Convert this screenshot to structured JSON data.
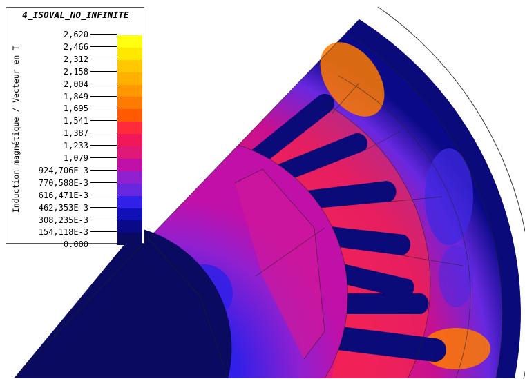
{
  "legend": {
    "title": "4_ISOVAL_NO_INFINITE",
    "axis_label": "Induction magnétique / Vecteur en T",
    "levels": [
      {
        "label": "2,620",
        "color": "#fbf6b0"
      },
      {
        "label": "2,466",
        "color": "#ffff10"
      },
      {
        "label": "2,312",
        "color": "#ffe800"
      },
      {
        "label": "2,158",
        "color": "#ffc800"
      },
      {
        "label": "2,004",
        "color": "#ffb000"
      },
      {
        "label": "1,849",
        "color": "#ff9800"
      },
      {
        "label": "1,695",
        "color": "#ff7a00"
      },
      {
        "label": "1,541",
        "color": "#ff5a00"
      },
      {
        "label": "1,387",
        "color": "#ff2a3a"
      },
      {
        "label": "1,233",
        "color": "#f01858"
      },
      {
        "label": "1,079",
        "color": "#e01878"
      },
      {
        "label": "924,706E-3",
        "color": "#c010a8"
      },
      {
        "label": "770,588E-3",
        "color": "#9020d0"
      },
      {
        "label": "616,471E-3",
        "color": "#6828e0"
      },
      {
        "label": "462,353E-3",
        "color": "#3020e8"
      },
      {
        "label": "308,235E-3",
        "color": "#1010b8"
      },
      {
        "label": "154,118E-3",
        "color": "#0a0a88"
      },
      {
        "label": "0.000",
        "color": "#0a0a60"
      }
    ]
  }
}
